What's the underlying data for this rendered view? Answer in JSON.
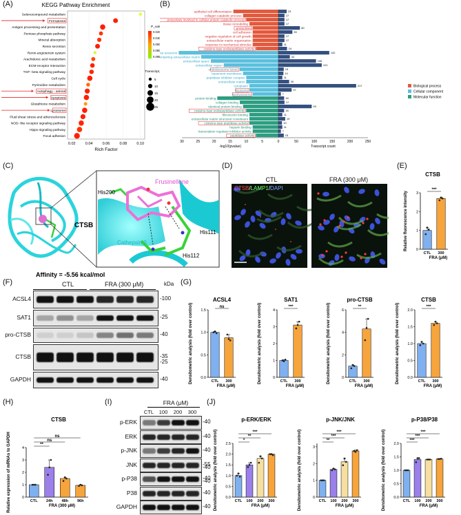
{
  "panels": {
    "A": {
      "label": "(A)",
      "title": "KEGG Pathway Enrichment",
      "xlabel": "Rich Factor",
      "xticks": [
        "0.02",
        "0.04",
        "0.06",
        "0.08",
        "0.10"
      ],
      "legend_p_title": "P_value",
      "legend_p_ticks": [
        "0.020",
        "0.040",
        "0.060",
        "0.080",
        "0.095"
      ],
      "legend_size_title": "Transcript_number",
      "legend_size_ticks": [
        "5",
        "10",
        "15",
        "20",
        "25"
      ],
      "pathways": [
        {
          "name": "Selenocompound metabolism",
          "rf": 0.1,
          "n": 5,
          "c": "#e8ff29",
          "hl": false
        },
        {
          "name": "Ferroptosis",
          "rf": 0.071,
          "n": 12,
          "c": "#ff1f00",
          "hl": true
        },
        {
          "name": "Antigen processing and presentation",
          "rf": 0.056,
          "n": 14,
          "c": "#ff1f00",
          "hl": false
        },
        {
          "name": "Pentose phosphate pathway",
          "rf": 0.054,
          "n": 9,
          "c": "#ff3300",
          "hl": false
        },
        {
          "name": "Mineral absorption",
          "rf": 0.052,
          "n": 10,
          "c": "#ff3300",
          "hl": false
        },
        {
          "name": "Renin secretion",
          "rf": 0.05,
          "n": 12,
          "c": "#ff1f00",
          "hl": false
        },
        {
          "name": "Renin-angiotensin system",
          "rf": 0.047,
          "n": 5,
          "c": "#d2ff2e",
          "hl": false
        },
        {
          "name": "Arachidonic acid metabolism",
          "rf": 0.045,
          "n": 9,
          "c": "#ff4a00",
          "hl": false
        },
        {
          "name": "ECM-receptor interaction",
          "rf": 0.044,
          "n": 11,
          "c": "#ff2000",
          "hl": false
        },
        {
          "name": "TGF- beta signaling pathway",
          "rf": 0.043,
          "n": 11,
          "c": "#ff2800",
          "hl": false
        },
        {
          "name": "Cell cycle",
          "rf": 0.041,
          "n": 14,
          "c": "#ff1f00",
          "hl": false
        },
        {
          "name": "Pyrimidine metabolism",
          "rf": 0.039,
          "n": 8,
          "c": "#ff6a00",
          "hl": false
        },
        {
          "name": "Autophagy - animal",
          "rf": 0.038,
          "n": 13,
          "c": "#ff2000",
          "hl": true
        },
        {
          "name": "Apoptosis",
          "rf": 0.037,
          "n": 14,
          "c": "#ff1f00",
          "hl": true
        },
        {
          "name": "Glutathione metabolism",
          "rf": 0.036,
          "n": 7,
          "c": "#ff9d00",
          "hl": false
        },
        {
          "name": "Lysosome",
          "rf": 0.035,
          "n": 14,
          "c": "#ff1f00",
          "hl": true
        },
        {
          "name": "Fluid shear stress and atherosclerosis",
          "rf": 0.033,
          "n": 13,
          "c": "#ff2000",
          "hl": false
        },
        {
          "name": "NOD- like receptor signaling pathway",
          "rf": 0.031,
          "n": 14,
          "c": "#ff2600",
          "hl": false
        },
        {
          "name": "Hippo signaling pathway",
          "rf": 0.029,
          "n": 14,
          "c": "#ff3000",
          "hl": false
        },
        {
          "name": "Focal adhesion",
          "rf": 0.026,
          "n": 16,
          "c": "#ff1f00",
          "hl": false
        }
      ]
    },
    "B": {
      "label": "(B)",
      "xlabel_left": "-log10(pvalue)",
      "xlabel_right": "Transcript count",
      "left_ticks": [
        "30",
        "25",
        "20",
        "15",
        "10",
        "5",
        "0"
      ],
      "right_ticks": [
        "0",
        "50",
        "100",
        "150",
        "200",
        "250"
      ],
      "legend": [
        {
          "name": "Biological process",
          "color": "#e25a3e"
        },
        {
          "name": "Cellular component",
          "color": "#5bc0de"
        },
        {
          "name": "Molecular function",
          "color": "#2e9e82"
        }
      ],
      "terms": [
        {
          "name": "epithelial cell differentiation",
          "p": 14,
          "n": 23,
          "g": 0,
          "hl": false
        },
        {
          "name": "collagen catabolic process",
          "p": 11,
          "n": 17,
          "g": 0,
          "hl": false
        },
        {
          "name": "proteolysis involved in cellular protein catabolic process",
          "p": 10,
          "n": 17,
          "g": 0,
          "hl": true
        },
        {
          "name": "tissue remodeling",
          "p": 9,
          "n": 17,
          "g": 0,
          "hl": false
        },
        {
          "name": "proteolysis",
          "p": 8,
          "n": 60,
          "g": 0,
          "hl": true
        },
        {
          "name": "cell adhesion",
          "p": 8,
          "n": 39,
          "g": 0,
          "hl": false
        },
        {
          "name": "negative regulation of cell growth",
          "p": 8,
          "n": 17,
          "g": 0,
          "hl": false
        },
        {
          "name": "extracellular matrix organization",
          "p": 8,
          "n": 17,
          "g": 0,
          "hl": false
        },
        {
          "name": "response to mechanical stimulus",
          "p": 8,
          "n": 11,
          "g": 0,
          "hl": false
        },
        {
          "name": "cysteine-type endopeptidase activity",
          "p": 7,
          "n": 24,
          "g": 0,
          "hl": true
        },
        {
          "name": "extracellular exosome",
          "p": 31,
          "n": 142,
          "g": 1,
          "hl": false
        },
        {
          "name": "collagen-containing extracellular matrix",
          "p": 24,
          "n": 32,
          "g": 1,
          "hl": false
        },
        {
          "name": "extracellular space",
          "p": 21,
          "n": 105,
          "g": 1,
          "hl": false
        },
        {
          "name": "extracellular region",
          "p": 17,
          "n": 121,
          "g": 1,
          "hl": false
        },
        {
          "name": "endolysosome lumen",
          "p": 12,
          "n": 15,
          "g": 1,
          "hl": true
        },
        {
          "name": "basement membrane",
          "p": 11,
          "n": 14,
          "g": 1,
          "hl": false
        },
        {
          "name": "peptidase inhibitor complex",
          "p": 10,
          "n": 11,
          "g": 1,
          "hl": false
        },
        {
          "name": "extracellular matrix",
          "p": 10,
          "n": 30,
          "g": 1,
          "hl": false
        },
        {
          "name": "cytoplasm",
          "p": 9,
          "n": 217,
          "g": 1,
          "hl": false
        },
        {
          "name": "lysosome",
          "p": 9,
          "n": 37,
          "g": 1,
          "hl": true
        },
        {
          "name": "autolysosome",
          "p": 8,
          "n": 7,
          "g": 1,
          "hl": true
        },
        {
          "name": "protein binding",
          "p": 19,
          "n": 16,
          "g": 2,
          "hl": false
        },
        {
          "name": "collagen binding",
          "p": 12,
          "n": 17,
          "g": 2,
          "hl": false
        },
        {
          "name": "identical protein binding",
          "p": 11,
          "n": 93,
          "g": 2,
          "hl": false
        },
        {
          "name": "cysteine-type endopeptidase activity",
          "p": 10,
          "n": 16,
          "g": 2,
          "hl": true
        },
        {
          "name": "fibronectin binding",
          "p": 9,
          "n": 11,
          "g": 2,
          "hl": false
        },
        {
          "name": "extracellular matrix structural constituent",
          "p": 9,
          "n": 19,
          "g": 2,
          "hl": false
        },
        {
          "name": "cysteine-type peptidase activity",
          "p": 9,
          "n": 10,
          "g": 2,
          "hl": true
        },
        {
          "name": "heparin binding",
          "p": 8,
          "n": 11,
          "g": 2,
          "hl": false
        },
        {
          "name": "transcription regulator inhibitor activity",
          "p": 8,
          "n": 7,
          "g": 2,
          "hl": false
        },
        {
          "name": "peptidase activity",
          "p": 7,
          "n": 15,
          "g": 2,
          "hl": true
        }
      ]
    },
    "C": {
      "label": "(C)",
      "protein_label": "CTSB",
      "ligand": "Frusinellone",
      "residues": [
        "His200",
        "His111",
        "His112"
      ],
      "enzyme": "Cathepsin β",
      "affinity": "Affinity = -5.56 kcal/mol"
    },
    "D": {
      "label": "(D)",
      "groups": [
        "CTL",
        "FRA (300 μM)"
      ],
      "stain_parts": [
        {
          "text": "CTSB",
          "color": "#ff4b4b"
        },
        {
          "text": "/",
          "color": "#ffffff"
        },
        {
          "text": "LAMP1",
          "color": "#6bff6b"
        },
        {
          "text": "/",
          "color": "#ffffff"
        },
        {
          "text": "DAPI",
          "color": "#7aa7ff"
        }
      ]
    },
    "E": {
      "label": "(E)",
      "title": "CTSB",
      "ylabel": "Relative fluorescence intensity",
      "yticks": [
        "0",
        "1",
        "2",
        "3"
      ],
      "categories": [
        "CTL",
        "300"
      ],
      "values": [
        1.0,
        2.7
      ],
      "points": [
        [
          0.8,
          1.15,
          1.05
        ],
        [
          2.6,
          2.75,
          2.7
        ]
      ],
      "sig": "***",
      "xlabel": "FRA (μM)"
    },
    "F": {
      "label": "(F)",
      "groups": [
        "CTL",
        "FRA (300 μM)"
      ],
      "kda_title": "kDa",
      "bands": [
        {
          "name": "ACSL4",
          "kda": "100"
        },
        {
          "name": "SAT1",
          "kda": "25"
        },
        {
          "name": "pro-CTSB",
          "kda": "40"
        },
        {
          "name": "CTSB",
          "kda": "35"
        },
        {
          "name": "GAPDH",
          "kda": "40"
        }
      ],
      "extra_kda": "25"
    },
    "G": {
      "label": "(G)",
      "ylabel": "Densitometric analysis (fold over control)",
      "xlabel": "FRA (μM)",
      "charts": [
        {
          "title": "ACSL4",
          "categories": [
            "CTL",
            "300"
          ],
          "values": [
            1.0,
            0.88
          ],
          "points": [
            [
              1.0,
              1.02,
              0.98
            ],
            [
              0.95,
              0.85,
              0.82
            ]
          ],
          "yticks": [
            "0.0",
            "0.5",
            "1.0",
            "1.5"
          ],
          "ymax": 1.5,
          "sig": "ns"
        },
        {
          "title": "SAT1",
          "categories": [
            "CTL",
            "300"
          ],
          "values": [
            1.0,
            3.1
          ],
          "points": [
            [
              1.0,
              0.95,
              1.05
            ],
            [
              2.9,
              3.1,
              3.3
            ]
          ],
          "yticks": [
            "0",
            "1",
            "2",
            "3",
            "4"
          ],
          "ymax": 4,
          "sig": "***"
        },
        {
          "title": "pro-CTSB",
          "categories": [
            "CTL",
            "300"
          ],
          "values": [
            1.0,
            4.3
          ],
          "points": [
            [
              0.8,
              1.1,
              1.0
            ],
            [
              3.3,
              4.4,
              5.2
            ]
          ],
          "yticks": [
            "0",
            "2",
            "4",
            "6"
          ],
          "ymax": 6,
          "sig": "**"
        },
        {
          "title": "CTSB",
          "categories": [
            "CTL",
            "300"
          ],
          "values": [
            1.0,
            1.6
          ],
          "points": [
            [
              0.95,
              1.05,
              1.0
            ],
            [
              1.55,
              1.65,
              1.6
            ]
          ],
          "yticks": [
            "0.0",
            "0.5",
            "1.0",
            "1.5",
            "2.0"
          ],
          "ymax": 2,
          "sig": "***"
        }
      ]
    },
    "H": {
      "label": "(H)",
      "title": "CTSB",
      "ylabel": "Relative expression of mRNAs to GAPDH",
      "categories": [
        "CTL",
        "24h",
        "48h",
        "96h"
      ],
      "values": [
        1.0,
        2.4,
        1.5,
        0.95
      ],
      "points": [
        [
          1.0,
          1.0,
          1.0
        ],
        [
          1.8,
          2.4,
          3.0
        ],
        [
          1.3,
          1.6,
          1.5
        ],
        [
          0.9,
          1.0,
          0.95
        ]
      ],
      "yticks": [
        "0",
        "1",
        "2",
        "3",
        "4"
      ],
      "ymax": 4,
      "sigs": [
        "**",
        "ns",
        "ns"
      ],
      "xlabel": "FRA (300 μM)"
    },
    "I": {
      "label": "(I)",
      "header": "FRA (μM)",
      "lanes": [
        "CTL",
        "100",
        "200",
        "300"
      ],
      "bands": [
        {
          "name": "p-ERK",
          "kda": "40"
        },
        {
          "name": "ERK",
          "kda": "40"
        },
        {
          "name": "p-JNK",
          "kda": "40"
        },
        {
          "name": "JNK",
          "kda": "55"
        },
        {
          "name": "p-P38",
          "kda": "40"
        },
        {
          "name": "P38",
          "kda": "40"
        },
        {
          "name": "GAPDH",
          "kda": "40"
        }
      ],
      "extra_kda": [
        "40",
        "40"
      ]
    },
    "J": {
      "label": "(J)",
      "ylabel": "Densitometric analysis (fold over control)",
      "xlabel": "FRA (μM)",
      "categories": [
        "CTL",
        "100",
        "200",
        "300"
      ],
      "charts": [
        {
          "title": "p-ERK/ERK",
          "values": [
            1.0,
            1.5,
            1.8,
            2.0
          ],
          "points": [
            [
              1.0,
              1.1,
              0.95
            ],
            [
              1.4,
              1.5,
              1.6
            ],
            [
              1.6,
              1.9,
              1.8
            ],
            [
              2.0,
              2.0,
              1.95
            ]
          ],
          "yticks": [
            "0.0",
            "0.5",
            "1.0",
            "1.5",
            "2.0",
            "2.5"
          ],
          "ymax": 2.5,
          "sigs": [
            "*",
            "**",
            "***"
          ]
        },
        {
          "title": "p-JNK/JNK",
          "values": [
            1.0,
            1.65,
            2.1,
            2.75
          ],
          "points": [
            [
              1.0,
              1.0,
              1.0
            ],
            [
              1.6,
              1.7,
              1.65
            ],
            [
              1.9,
              2.3,
              2.1
            ],
            [
              2.75,
              2.7,
              2.8
            ]
          ],
          "yticks": [
            "0",
            "1",
            "2",
            "3"
          ],
          "ymax": 3.2,
          "sigs": [
            "**",
            "***",
            "***"
          ]
        },
        {
          "title": "p-P38/P38",
          "values": [
            1.0,
            1.4,
            1.4,
            1.42
          ],
          "points": [
            [
              1.0,
              1.0,
              1.0
            ],
            [
              1.3,
              1.45,
              1.45
            ],
            [
              1.4,
              1.4,
              1.4
            ],
            [
              1.42,
              1.42,
              1.43
            ]
          ],
          "yticks": [
            "0.0",
            "0.5",
            "1.0",
            "1.5",
            "2.0"
          ],
          "ymax": 2,
          "sigs": [
            "***",
            "***",
            "***"
          ]
        }
      ]
    }
  }
}
